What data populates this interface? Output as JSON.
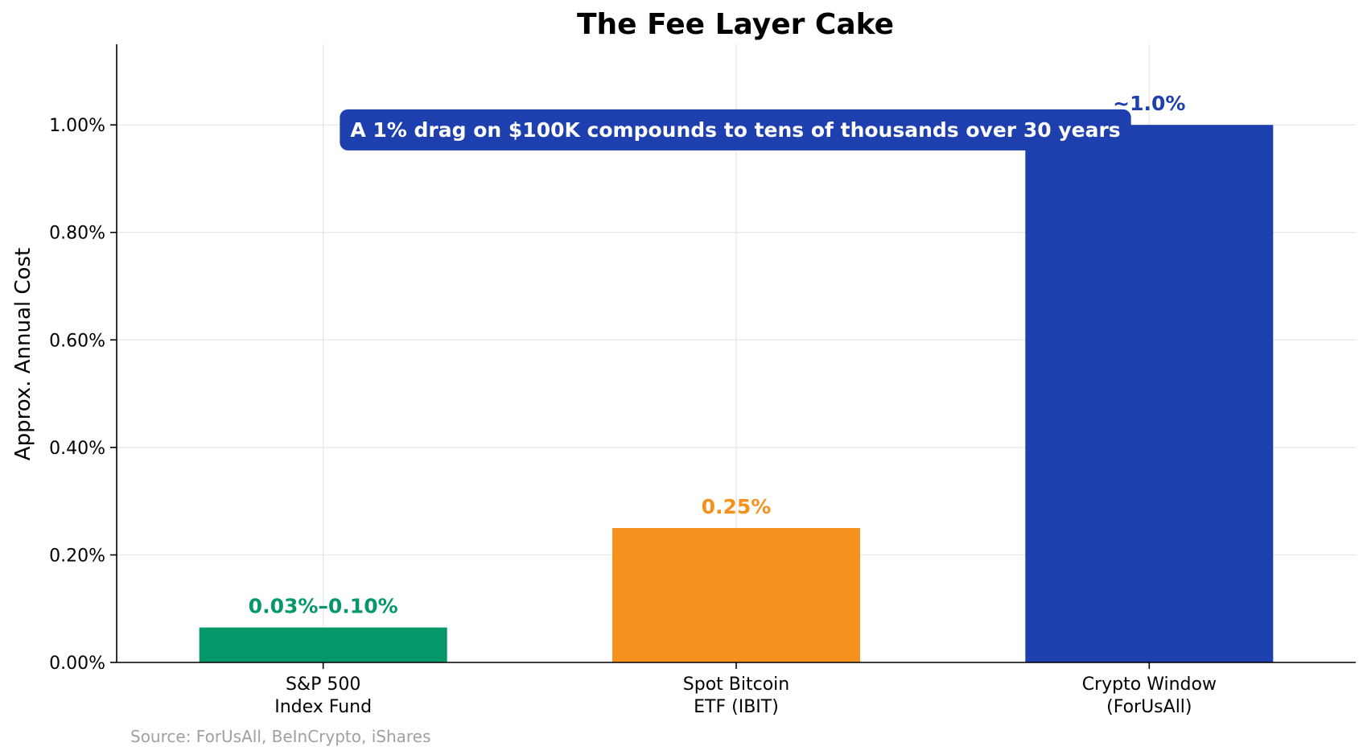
{
  "chart_data": {
    "type": "bar",
    "title": "The Fee Layer Cake",
    "ylabel": "Approx. Annual Cost",
    "xlabel": "",
    "ylim": [
      0,
      1.15
    ],
    "yticks": [
      0,
      0.2,
      0.4,
      0.6,
      0.8,
      1.0
    ],
    "ytick_labels": [
      "0.00%",
      "0.20%",
      "0.40%",
      "0.60%",
      "0.80%",
      "1.00%"
    ],
    "grid": true,
    "bars": [
      {
        "category_lines": [
          "S&P 500",
          "Index Fund"
        ],
        "value": 0.065,
        "label": "0.03%–0.10%",
        "color": "#05966a"
      },
      {
        "category_lines": [
          "Spot Bitcoin",
          "ETF (IBIT)"
        ],
        "value": 0.25,
        "label": "0.25%",
        "color": "#f5921e"
      },
      {
        "category_lines": [
          "Crypto Window",
          "(ForUsAll)"
        ],
        "value": 1.0,
        "label": "~1.0%",
        "color": "#1e40ae"
      }
    ],
    "annotation": {
      "text": "A 1% drag on $100K compounds to tens of thousands over 30 years",
      "y": 0.99,
      "background": "#1e40ae",
      "color": "#ffffff"
    },
    "source": "Source: ForUsAll, BeInCrypto, iShares"
  }
}
